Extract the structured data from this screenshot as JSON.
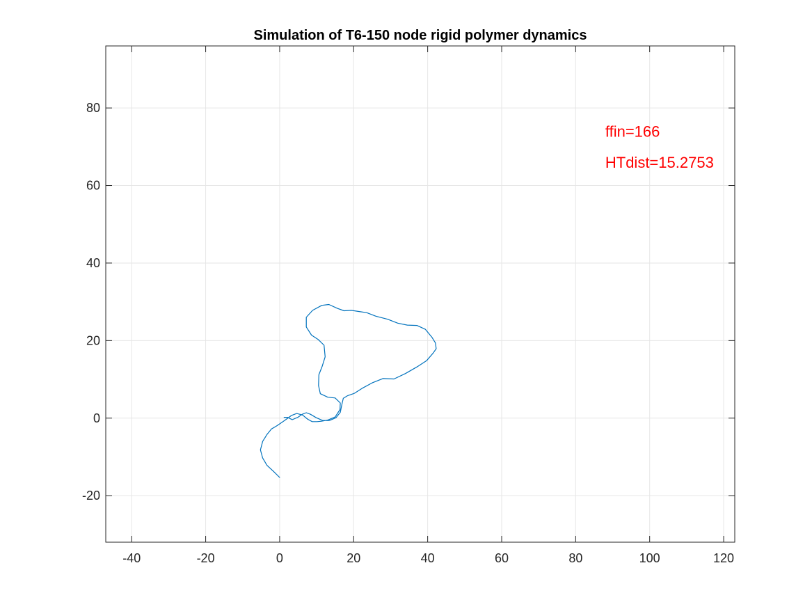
{
  "chart_data": {
    "type": "line",
    "title": "Simulation of T6-150 node rigid polymer dynamics",
    "xlabel": "",
    "ylabel": "",
    "xlim": [
      -47,
      123
    ],
    "ylim": [
      -32,
      96
    ],
    "xticks": [
      -40,
      -20,
      0,
      20,
      40,
      60,
      80,
      100,
      120
    ],
    "yticks": [
      -20,
      0,
      20,
      40,
      60,
      80
    ],
    "xtick_labels": [
      "-40",
      "-20",
      "0",
      "20",
      "40",
      "60",
      "80",
      "100",
      "120"
    ],
    "ytick_labels": [
      "-20",
      "0",
      "20",
      "40",
      "60",
      "80"
    ],
    "grid": true,
    "box": true,
    "series": [
      {
        "color": "#0072BD",
        "x": [
          0,
          -1.6,
          -3.4,
          -4.6,
          -5.2,
          -4.6,
          -3.4,
          -2.2,
          -0.8,
          0.6,
          1.8,
          3.2,
          4.6,
          6.2,
          7.6,
          8.8,
          10.1,
          11.3,
          13.0,
          15.0,
          16.3,
          16.4,
          15.0,
          13.0,
          11.0,
          10.5,
          10.6,
          11.5,
          12.3,
          12.0,
          10.4,
          8.6,
          7.2,
          7.2,
          8.9,
          11.4,
          13.3,
          15.6,
          17.4,
          19.3,
          21.5,
          23.5,
          26.0,
          29.2,
          31.9,
          34.5,
          37.1,
          39.4,
          41.2,
          42.1,
          42.3,
          41.5,
          39.7,
          37.1,
          34.0,
          30.9,
          27.9,
          25.0,
          22.5,
          20.2,
          18.4,
          17.2,
          16.8,
          16.4,
          15.2,
          13.5,
          11.6,
          9.9,
          8.3,
          7.2,
          6.1,
          4.9,
          3.4,
          2.1,
          1.2
        ],
        "y": [
          -15.3,
          -13.8,
          -12.2,
          -10.3,
          -8.2,
          -6.0,
          -4.2,
          -2.8,
          -2.0,
          -1.1,
          -0.3,
          0.7,
          1.2,
          0.8,
          -0.3,
          -0.9,
          -0.9,
          -0.8,
          -0.5,
          0.3,
          2.2,
          3.9,
          5.2,
          5.4,
          6.3,
          8.4,
          11.2,
          13.4,
          15.8,
          18.8,
          20.3,
          21.4,
          23.5,
          26.0,
          27.8,
          29.1,
          29.3,
          28.3,
          27.7,
          27.8,
          27.5,
          27.2,
          26.3,
          25.5,
          24.5,
          24.0,
          23.9,
          22.9,
          20.8,
          19.4,
          17.9,
          16.8,
          14.8,
          13.2,
          11.5,
          10.1,
          10.2,
          9.1,
          7.8,
          6.4,
          5.8,
          5.1,
          3.5,
          1.5,
          0.1,
          -0.6,
          -0.6,
          0.1,
          1.0,
          1.4,
          1.0,
          0.2,
          -0.4,
          0.2,
          0.2
        ]
      }
    ],
    "annotations": [
      {
        "text": "ffin=166",
        "x": 88,
        "y": 74,
        "color": "#ff0000"
      },
      {
        "text": "HTdist=15.2753",
        "x": 88,
        "y": 66,
        "color": "#ff0000"
      }
    ]
  }
}
